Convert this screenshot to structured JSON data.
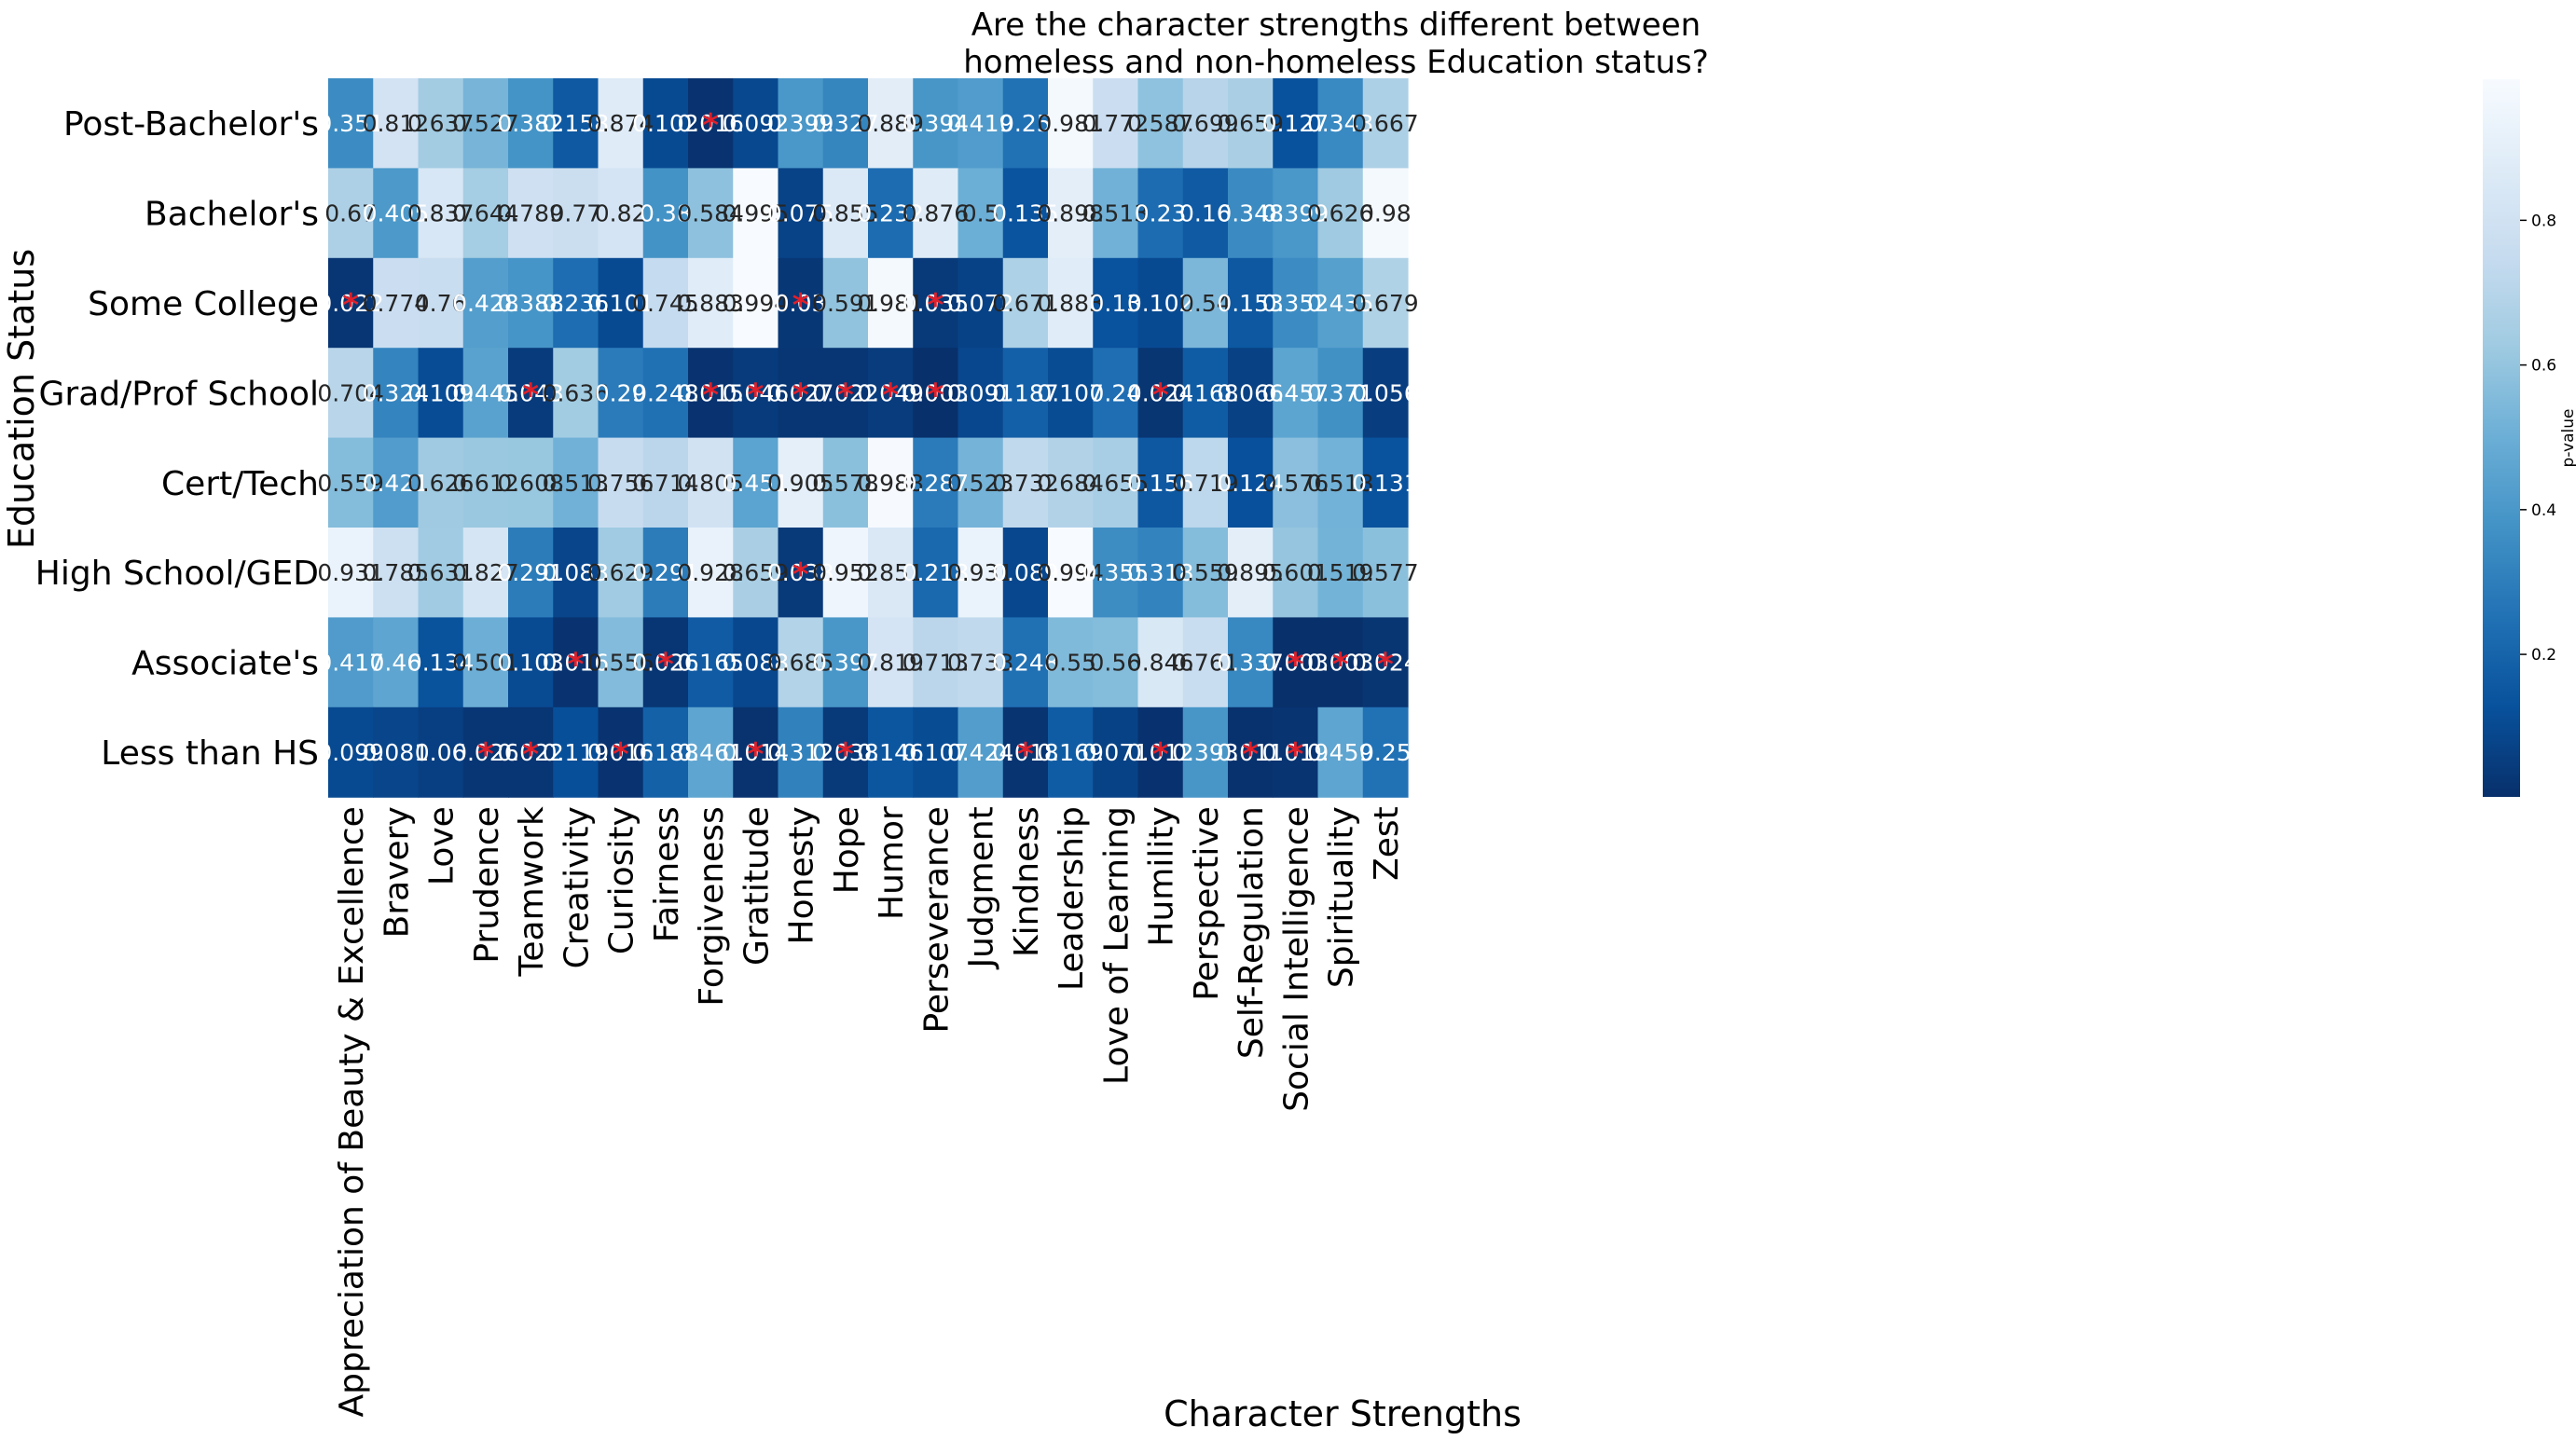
{
  "chart_data": {
    "type": "heatmap",
    "title_lines": [
      "Are the character strengths different between",
      "homeless and non-homeless Education status?"
    ],
    "xlabel": "Character Strengths",
    "ylabel": "Education Status",
    "colorbar_label": "p-value",
    "colorbar_ticks": [
      0.2,
      0.4,
      0.6,
      0.8
    ],
    "colorbar_tick_labels": [
      "0.2",
      "0.4",
      "0.6",
      "0.8"
    ],
    "colormap": "Blues_r",
    "vmin": 0.003,
    "vmax": 0.995,
    "significant_marker": "*",
    "significant_color": "#e0202a",
    "columns": [
      "Appreciation of Beauty & Excellence",
      "Bravery",
      "Love",
      "Prudence",
      "Teamwork",
      "Creativity",
      "Curiosity",
      "Fairness",
      "Forgiveness",
      "Gratitude",
      "Honesty",
      "Hope",
      "Humor",
      "Perseverance",
      "Judgment",
      "Kindness",
      "Leadership",
      "Love of Learning",
      "Humility",
      "Perspective",
      "Self-Regulation",
      "Social Intelligence",
      "Spirituality",
      "Zest"
    ],
    "rows": [
      "Post-Bachelor's",
      "Bachelor's",
      "Some College",
      "Grad/Prof School",
      "Cert/Tech",
      "High School/GED",
      "Associate's",
      "Less than HS"
    ],
    "values": [
      [
        "0.351",
        "0.812",
        "0.637",
        "0.527",
        "0.382",
        "0.158",
        "0.874",
        "0.102",
        "0.016",
        "0.092",
        "0.399",
        "0.327",
        "0.889",
        "0.394",
        "0.419",
        "0.25",
        "0.981",
        "0.772",
        "0.587",
        "0.699",
        "0.659",
        "0.127",
        "0.343",
        "0.667"
      ],
      [
        "0.67",
        "0.405",
        "0.837",
        "0.644",
        "0.789",
        "0.77",
        "0.82",
        "0.38",
        "0.584",
        "0.995",
        "0.075",
        "0.855",
        "0.232",
        "0.876",
        "0.5",
        "0.135",
        "0.898",
        "0.513",
        "0.23",
        "0.16",
        "0.348",
        "0.399",
        "0.626",
        "0.98"
      ],
      [
        "0.022",
        "0.774",
        "0.76",
        "0.428",
        "0.388",
        "0.236",
        "0.101",
        "0.745",
        "0.883",
        "0.994",
        "0.03",
        "0.591",
        "0.981",
        "0.035",
        "0.072",
        "0.671",
        "0.883",
        "0.13",
        "0.102",
        "0.54",
        "0.153",
        "0.352",
        "0.435",
        "0.679"
      ],
      [
        "0.704",
        "0.324",
        "0.109",
        "0.445",
        "0.043",
        "0.636",
        "0.29",
        "0.248",
        "0.015",
        "0.046",
        "0.027",
        "0.022",
        "0.049",
        "0.003",
        "0.091",
        "0.187",
        "0.107",
        "0.24",
        "0.024",
        "0.168",
        "0.066",
        "0.457",
        "0.371",
        "0.056"
      ],
      [
        "0.559",
        "0.421",
        "0.626",
        "0.612",
        "0.608",
        "0.513",
        "0.756",
        "0.714",
        "0.805",
        "0.451",
        "0.905",
        "0.578",
        "0.988",
        "0.287",
        "0.523",
        "0.732",
        "0.684",
        "0.655",
        "0.156",
        "0.719",
        "0.124",
        "0.576",
        "0.518",
        "0.131"
      ],
      [
        "0.931",
        "0.785",
        "0.631",
        "0.827",
        "0.291",
        "0.083",
        "0.629",
        "0.291",
        "0.928",
        "0.659",
        "0.038",
        "0.952",
        "0.851",
        "0.218",
        "0.931",
        "0.089",
        "0.994",
        "0.355",
        "0.318",
        "0.559",
        "0.895",
        "0.601",
        "0.519",
        "0.577"
      ],
      [
        "0.417",
        "0.46",
        "0.134",
        "0.501",
        "0.103",
        "0.016",
        "0.556",
        "0.026",
        "0.165",
        "0.088",
        "0.685",
        "0.397",
        "0.819",
        "0.713",
        "0.733",
        "0.248",
        "0.55",
        "0.56",
        "0.846",
        "0.761",
        "0.337",
        "0.003",
        "0.003",
        "0.024"
      ],
      [
        "0.099",
        "0.081",
        "0.06",
        "0.026",
        "0.022",
        "0.119",
        "0.016",
        "0.188",
        "0.461",
        "0.014",
        "0.312",
        "0.038",
        "0.146",
        "0.107",
        "0.424",
        "0.018",
        "0.169",
        "0.071",
        "0.012",
        "0.393",
        "0.011",
        "0.019",
        "0.459",
        "0.25"
      ]
    ]
  }
}
